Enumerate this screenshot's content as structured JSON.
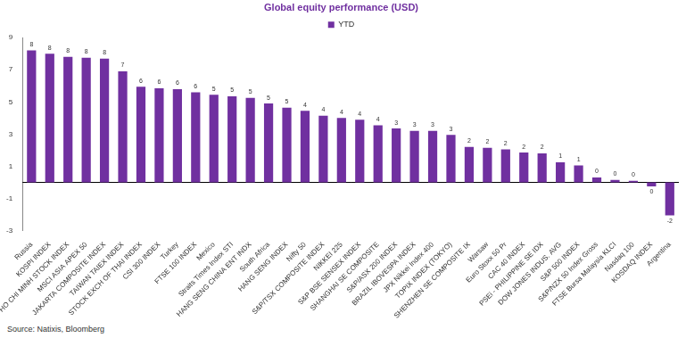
{
  "chart_data": {
    "type": "bar",
    "title": "Global equity performance (USD)",
    "categories": [
      "Russia",
      "KOSPI INDEX",
      "HO CHI MINH STOCK INDEX",
      "MSCI ASIA APEX 50",
      "JAKARTA COMPOSITE INDEX",
      "TAIWAN TAIEX INDEX",
      "STOCK EXCH OF THAI INDEX",
      "CSI 300 INDEX",
      "Turkey",
      "FTSE 100 INDEX",
      "Mexico",
      "Straits Times Index STI",
      "HANG SENG CHINA ENT INDX",
      "South Africa",
      "HANG SENG INDEX",
      "Nifty 50",
      "S&P/TSX COMPOSITE INDEX",
      "NIKKEI 225",
      "S&P BSE SENSEX INDEX",
      "SHANGHAI SE COMPOSITE",
      "S&P/ASX 200 INDEX",
      "BRAZIL IBOVESPA INDEX",
      "JPX Nikkei Index 400",
      "TOPIX INDEX (TOKYO)",
      "SHENZHEN SE COMPOSITE IX",
      "Warsaw",
      "Euro Stoxx 50 Pr",
      "CAC 40 INDEX",
      "PSEi - PHILIPPINE SE IDX",
      "DOW JONES INDUS. AVG",
      "S&P 500 INDEX",
      "S&P/NZX 50 Index Gross",
      "FTSE Bursa Malaysia KLCI",
      "Nasdaq 100",
      "KOSDAQ INDEX",
      "Argentina"
    ],
    "series": [
      {
        "name": "YTD",
        "color": "#7030a0",
        "values": [
          8.2,
          8.0,
          7.8,
          7.75,
          7.7,
          6.9,
          5.95,
          5.85,
          5.8,
          5.6,
          5.45,
          5.35,
          5.25,
          4.9,
          4.65,
          4.45,
          4.15,
          4.0,
          3.9,
          3.55,
          3.35,
          3.2,
          3.2,
          2.95,
          2.2,
          2.15,
          2.05,
          1.85,
          1.8,
          1.25,
          1.05,
          0.3,
          0.15,
          0.1,
          -0.25,
          -2.05
        ],
        "value_labels": [
          "8",
          "8",
          "8",
          "8",
          "8",
          "7",
          "6",
          "6",
          "6",
          "6",
          "5",
          "5",
          "5",
          "5",
          "5",
          "4",
          "4",
          "4",
          "4",
          "4",
          "3",
          "3",
          "3",
          "3",
          "2",
          "2",
          "2",
          "2",
          "2",
          "1",
          "1",
          "0",
          "0",
          "0",
          "0",
          "-2"
        ]
      }
    ],
    "ylim": [
      -3,
      9
    ],
    "yticks": [
      -3,
      -1,
      1,
      3,
      5,
      7,
      9
    ],
    "grid": false,
    "legend": "top",
    "data_labels": true,
    "annotations": [
      "Source: Natixis, Bloomberg"
    ]
  }
}
